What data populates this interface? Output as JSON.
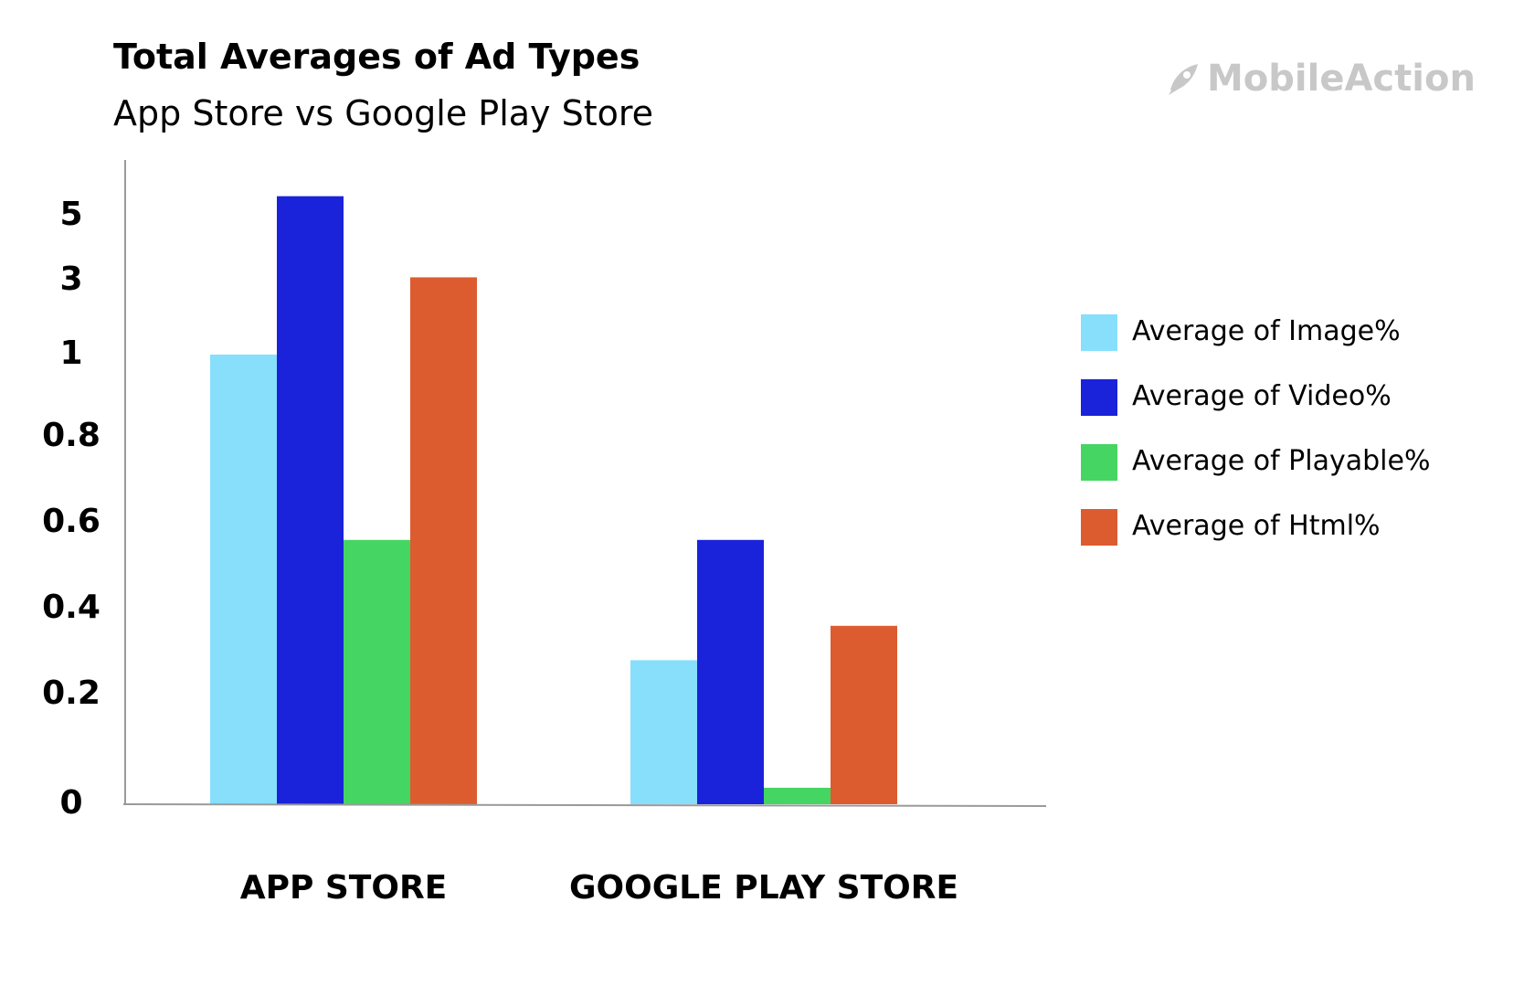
{
  "header": {
    "title": "Total Averages of Ad Types",
    "subtitle": "App Store vs Google Play Store"
  },
  "logo": {
    "text": "MobileAction",
    "icon": "rocket-icon",
    "color": "#c8c8c8"
  },
  "chart_data": {
    "type": "bar",
    "title": "Total Averages of Ad Types",
    "subtitle": "App Store vs Google Play Store",
    "xlabel": "",
    "ylabel": "",
    "y_tick_labels": [
      "0",
      "0.2",
      "0.4",
      "0.6",
      "0.8",
      "1",
      "3",
      "5"
    ],
    "categories": [
      "APP STORE",
      "GOOGLE PLAY STORE"
    ],
    "series": [
      {
        "name": "Average of Image%",
        "color": "#87dffc",
        "values": [
          1,
          0.28
        ]
      },
      {
        "name": "Average of Video%",
        "color": "#1a23d9",
        "values": [
          5.6,
          0.56
        ]
      },
      {
        "name": "Average of Playable%",
        "color": "#45d563",
        "values": [
          0.56,
          0.03
        ]
      },
      {
        "name": "Average of Html%",
        "color": "#dc5c30",
        "values": [
          3.1,
          0.36
        ]
      }
    ],
    "grid": false,
    "legend_position": "right"
  }
}
